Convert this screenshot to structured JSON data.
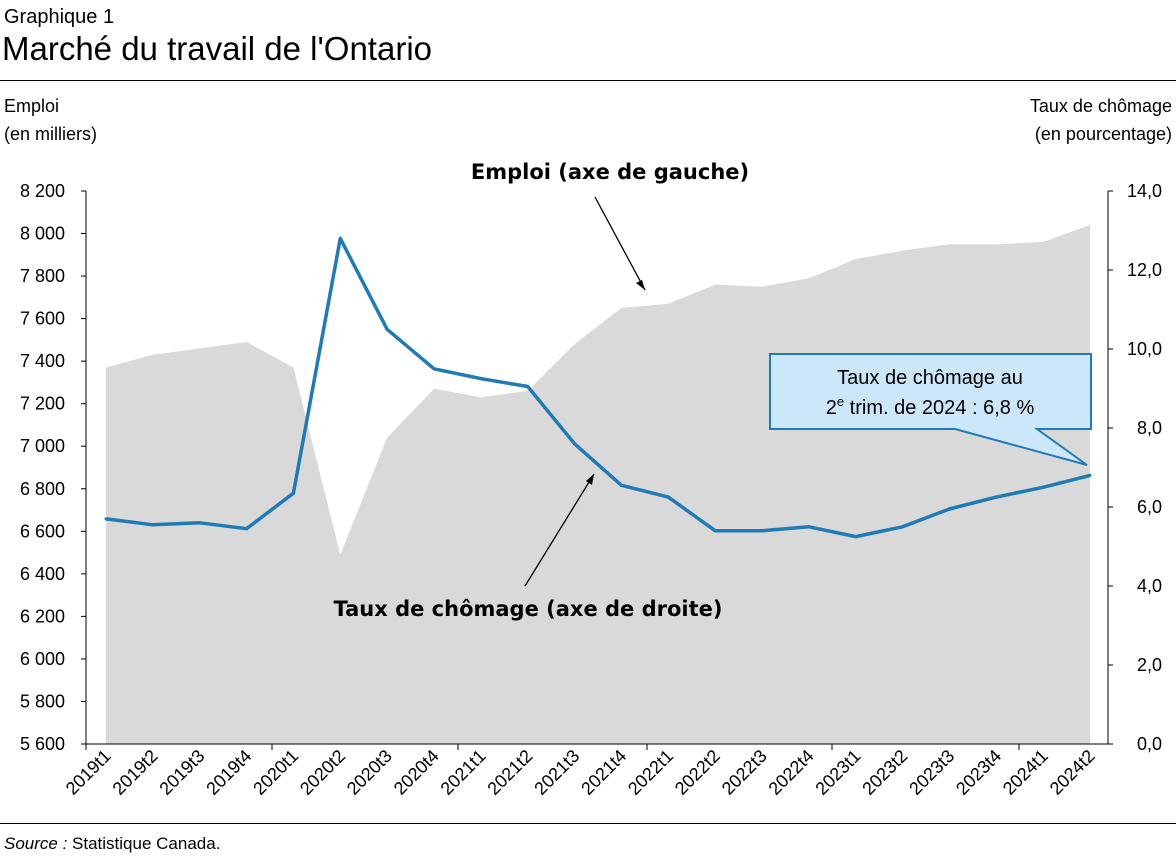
{
  "header": {
    "subtitle": "Graphique 1",
    "title": "Marché du travail de l'Ontario"
  },
  "axis_labels": {
    "left_line1": "Emploi",
    "left_line2": "(en milliers)",
    "right_line1": "Taux de chômage",
    "right_line2": "(en pourcentage)"
  },
  "annotations": {
    "employment": "Emploi (axe de gauche)",
    "unemployment": "Taux de chômage (axe de droite)",
    "callout_line1": "Taux de chômage au",
    "callout_line2_num": "2",
    "callout_line2_sup": "e",
    "callout_line2_rest": " trim. de 2024 : 6,8 %"
  },
  "source": {
    "label": "Source :",
    "text": " Statistique Canada."
  },
  "colors": {
    "area": "#d9d9d9",
    "line": "#1f7bb6",
    "callout_fill": "#cce7fa",
    "callout_border": "#1f7bb6"
  },
  "chart_data": {
    "type": "area+line",
    "categories": [
      "2019t1",
      "2019t2",
      "2019t3",
      "2019t4",
      "2020t1",
      "2020t2",
      "2020t3",
      "2020t4",
      "2021t1",
      "2021t2",
      "2021t3",
      "2021t4",
      "2022t1",
      "2022t2",
      "2022t3",
      "2022t4",
      "2023t1",
      "2023t2",
      "2023t3",
      "2023t4",
      "2024t1",
      "2024t2"
    ],
    "series": [
      {
        "name": "Emploi (axe de gauche)",
        "axis": "left",
        "type": "area",
        "values": [
          7370,
          7430,
          7460,
          7490,
          7370,
          6490,
          7040,
          7270,
          7230,
          7260,
          7480,
          7650,
          7670,
          7760,
          7750,
          7790,
          7880,
          7920,
          7950,
          7950,
          7960,
          8040
        ]
      },
      {
        "name": "Taux de chômage (axe de droite)",
        "axis": "right",
        "type": "line",
        "values": [
          5.7,
          5.55,
          5.6,
          5.45,
          6.35,
          12.8,
          10.5,
          9.5,
          9.25,
          9.05,
          7.6,
          6.55,
          6.25,
          5.4,
          5.4,
          5.5,
          5.25,
          5.5,
          5.95,
          6.25,
          6.5,
          6.8
        ]
      }
    ],
    "y_left": {
      "min": 5600,
      "max": 8200,
      "step": 200,
      "tick_labels": [
        "5 600",
        "5 800",
        "6 000",
        "6 200",
        "6 400",
        "6 600",
        "6 800",
        "7 000",
        "7 200",
        "7 400",
        "7 600",
        "7 800",
        "8 000",
        "8 200"
      ]
    },
    "y_right": {
      "min": 0,
      "max": 14,
      "step": 2,
      "tick_labels": [
        "0,0",
        "2,0",
        "4,0",
        "6,0",
        "8,0",
        "10,0",
        "12,0",
        "14,0"
      ]
    },
    "grid": false,
    "legend": "none"
  }
}
